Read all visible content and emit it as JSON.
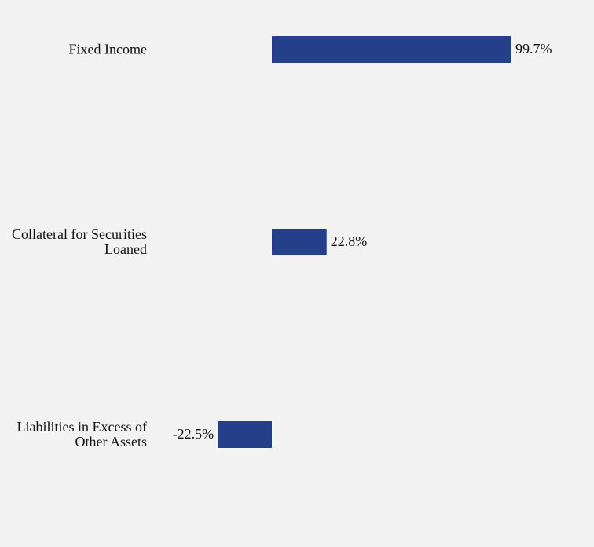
{
  "chart_data": {
    "type": "bar",
    "orientation": "horizontal",
    "categories": [
      "Fixed Income",
      "Collateral for Securities Loaned",
      "Liabilities in Excess of Other Assets"
    ],
    "values": [
      99.7,
      22.8,
      -22.5
    ],
    "value_labels": [
      "99.7%",
      "22.8%",
      "-22.5%"
    ],
    "color": "#253f8a"
  }
}
